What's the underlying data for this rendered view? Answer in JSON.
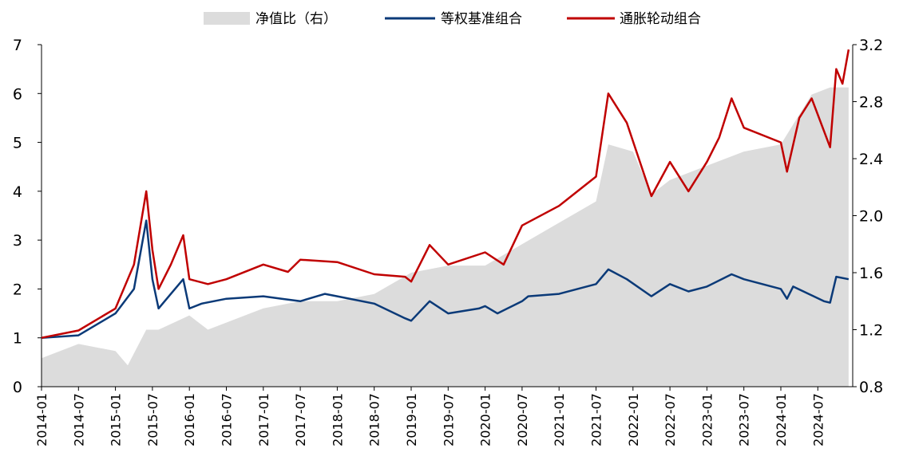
{
  "chart_data": {
    "type": "line",
    "title": "",
    "legend_position": "top",
    "legend": [
      "净值比（右）",
      "等权基准组合",
      "通胀轮动组合"
    ],
    "colors": {
      "ratio": "#dcdcdc",
      "equal": "#0b3a78",
      "rotation": "#c00000"
    },
    "y_left": {
      "min": 0,
      "max": 7,
      "ticks": [
        "0",
        "1",
        "2",
        "3",
        "4",
        "5",
        "6",
        "7"
      ]
    },
    "y_right": {
      "min": 0.8,
      "max": 3.2,
      "ticks": [
        "0.8",
        "1.2",
        "1.6",
        "2.0",
        "2.4",
        "2.8",
        "3.2"
      ]
    },
    "x_ticks": [
      "2014-01",
      "2014-07",
      "2015-01",
      "2015-07",
      "2016-01",
      "2016-07",
      "2017-01",
      "2017-07",
      "2018-01",
      "2018-07",
      "2019-01",
      "2019-07",
      "2020-01",
      "2020-07",
      "2021-01",
      "2021-07",
      "2022-01",
      "2022-07",
      "2023-01",
      "2023-07",
      "2024-01",
      "2024-07"
    ],
    "series": [
      {
        "name": "净值比（右）",
        "axis": "right",
        "type": "area",
        "points": [
          [
            "2014-01",
            1.0
          ],
          [
            "2014-07",
            1.1
          ],
          [
            "2015-01",
            1.05
          ],
          [
            "2015-03",
            0.95
          ],
          [
            "2015-06",
            1.2
          ],
          [
            "2015-08",
            1.2
          ],
          [
            "2016-01",
            1.3
          ],
          [
            "2016-04",
            1.2
          ],
          [
            "2017-01",
            1.35
          ],
          [
            "2017-07",
            1.4
          ],
          [
            "2018-01",
            1.4
          ],
          [
            "2018-07",
            1.45
          ],
          [
            "2019-01",
            1.6
          ],
          [
            "2019-07",
            1.65
          ],
          [
            "2020-01",
            1.65
          ],
          [
            "2020-07",
            1.8
          ],
          [
            "2021-01",
            1.95
          ],
          [
            "2021-07",
            2.1
          ],
          [
            "2021-09",
            2.5
          ],
          [
            "2022-01",
            2.45
          ],
          [
            "2022-04",
            2.15
          ],
          [
            "2022-07",
            2.25
          ],
          [
            "2023-01",
            2.35
          ],
          [
            "2023-07",
            2.45
          ],
          [
            "2024-01",
            2.5
          ],
          [
            "2024-06",
            2.85
          ],
          [
            "2024-09",
            2.9
          ],
          [
            "2024-12",
            2.9
          ]
        ]
      },
      {
        "name": "等权基准组合",
        "axis": "left",
        "type": "line",
        "points": [
          [
            "2014-01",
            1.0
          ],
          [
            "2014-07",
            1.05
          ],
          [
            "2015-01",
            1.5
          ],
          [
            "2015-04",
            2.0
          ],
          [
            "2015-06",
            3.4
          ],
          [
            "2015-07",
            2.2
          ],
          [
            "2015-08",
            1.6
          ],
          [
            "2015-10",
            1.9
          ],
          [
            "2015-12",
            2.2
          ],
          [
            "2016-01",
            1.6
          ],
          [
            "2016-03",
            1.7
          ],
          [
            "2016-07",
            1.8
          ],
          [
            "2017-01",
            1.85
          ],
          [
            "2017-04",
            1.8
          ],
          [
            "2017-07",
            1.75
          ],
          [
            "2017-11",
            1.9
          ],
          [
            "2018-01",
            1.85
          ],
          [
            "2018-07",
            1.7
          ],
          [
            "2018-12",
            1.4
          ],
          [
            "2019-01",
            1.35
          ],
          [
            "2019-04",
            1.75
          ],
          [
            "2019-07",
            1.5
          ],
          [
            "2019-12",
            1.6
          ],
          [
            "2020-01",
            1.65
          ],
          [
            "2020-03",
            1.5
          ],
          [
            "2020-07",
            1.75
          ],
          [
            "2020-08",
            1.85
          ],
          [
            "2021-01",
            1.9
          ],
          [
            "2021-07",
            2.1
          ],
          [
            "2021-09",
            2.4
          ],
          [
            "2021-12",
            2.2
          ],
          [
            "2022-04",
            1.85
          ],
          [
            "2022-07",
            2.1
          ],
          [
            "2022-10",
            1.95
          ],
          [
            "2023-01",
            2.05
          ],
          [
            "2023-05",
            2.3
          ],
          [
            "2023-07",
            2.2
          ],
          [
            "2024-01",
            2.0
          ],
          [
            "2024-02",
            1.8
          ],
          [
            "2024-03",
            2.05
          ],
          [
            "2024-08",
            1.75
          ],
          [
            "2024-09",
            1.72
          ],
          [
            "2024-10",
            2.25
          ],
          [
            "2024-12",
            2.2
          ]
        ]
      },
      {
        "name": "通胀轮动组合",
        "axis": "left",
        "type": "line",
        "points": [
          [
            "2014-01",
            1.0
          ],
          [
            "2014-07",
            1.15
          ],
          [
            "2015-01",
            1.6
          ],
          [
            "2015-04",
            2.5
          ],
          [
            "2015-06",
            4.0
          ],
          [
            "2015-07",
            2.8
          ],
          [
            "2015-08",
            2.0
          ],
          [
            "2015-10",
            2.5
          ],
          [
            "2015-12",
            3.1
          ],
          [
            "2016-01",
            2.2
          ],
          [
            "2016-04",
            2.1
          ],
          [
            "2016-07",
            2.2
          ],
          [
            "2017-01",
            2.5
          ],
          [
            "2017-05",
            2.35
          ],
          [
            "2017-07",
            2.6
          ],
          [
            "2018-01",
            2.55
          ],
          [
            "2018-07",
            2.3
          ],
          [
            "2018-12",
            2.25
          ],
          [
            "2019-01",
            2.15
          ],
          [
            "2019-04",
            2.9
          ],
          [
            "2019-07",
            2.5
          ],
          [
            "2020-01",
            2.75
          ],
          [
            "2020-04",
            2.5
          ],
          [
            "2020-07",
            3.3
          ],
          [
            "2021-01",
            3.7
          ],
          [
            "2021-04",
            4.0
          ],
          [
            "2021-07",
            4.3
          ],
          [
            "2021-09",
            6.0
          ],
          [
            "2021-12",
            5.4
          ],
          [
            "2022-04",
            3.9
          ],
          [
            "2022-07",
            4.6
          ],
          [
            "2022-10",
            4.0
          ],
          [
            "2023-01",
            4.6
          ],
          [
            "2023-03",
            5.1
          ],
          [
            "2023-05",
            5.9
          ],
          [
            "2023-07",
            5.3
          ],
          [
            "2024-01",
            5.0
          ],
          [
            "2024-02",
            4.4
          ],
          [
            "2024-04",
            5.5
          ],
          [
            "2024-06",
            5.9
          ],
          [
            "2024-09",
            4.9
          ],
          [
            "2024-10",
            6.5
          ],
          [
            "2024-11",
            6.2
          ],
          [
            "2024-12",
            6.9
          ]
        ]
      }
    ]
  }
}
